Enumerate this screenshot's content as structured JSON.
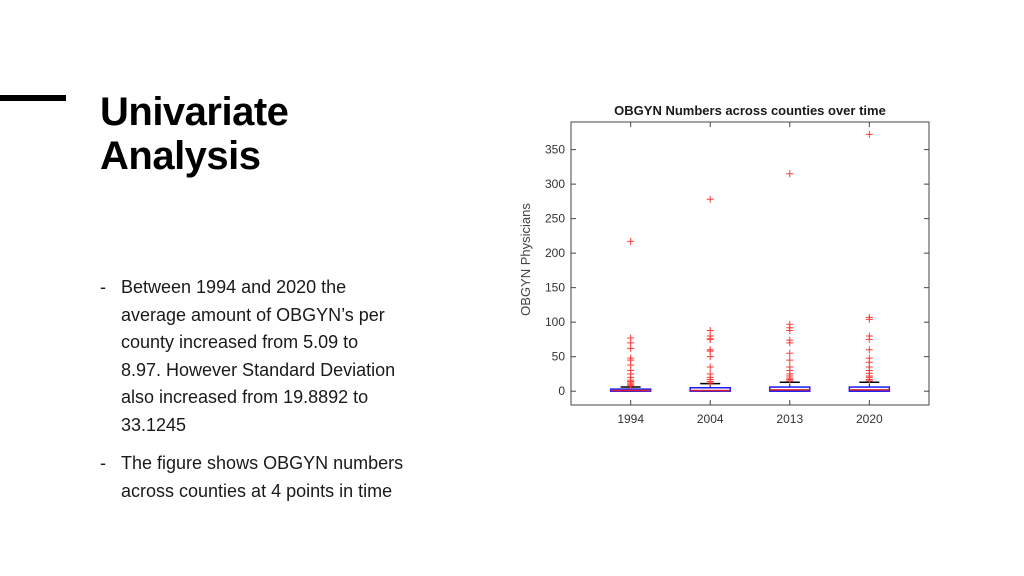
{
  "slide": {
    "title_lines": [
      "Univariate",
      "Analysis"
    ],
    "bullets": [
      {
        "dash": "-",
        "lines": [
          "Between 1994 and 2020 the",
          "average amount of OBGYN’s per",
          "county increased from 5.09 to",
          "8.97. However Standard Deviation",
          "also increased from 19.8892 to",
          "33.1245"
        ]
      },
      {
        "dash": "-",
        "lines": [
          "The figure shows OBGYN numbers",
          "across counties at 4 points in time"
        ]
      }
    ]
  },
  "chart_data": {
    "type": "boxplot",
    "title": "OBGYN Numbers across counties over time",
    "xlabel": "",
    "ylabel": "OBGYN Physicians",
    "categories": [
      "1994",
      "2004",
      "2013",
      "2020"
    ],
    "ylim": [
      -20,
      390
    ],
    "yticks": [
      0,
      50,
      100,
      150,
      200,
      250,
      300,
      350
    ],
    "ytick_labels": [
      "0",
      "50",
      "100",
      "150",
      "200",
      "250",
      "300",
      "350"
    ],
    "box_color": "#1a1aff",
    "median_color": "#e02020",
    "whisker_color": "#000000",
    "outlier_color": "#ff3b3b",
    "boxes": [
      {
        "category": "1994",
        "q1": 0,
        "median": 1,
        "q3": 3,
        "whisker_low": 0,
        "whisker_high": 6,
        "outliers": [
          217,
          77,
          70,
          62,
          48,
          45,
          38,
          30,
          25,
          20,
          16,
          14,
          12,
          10,
          8
        ]
      },
      {
        "category": "2004",
        "q1": 0,
        "median": 1,
        "q3": 5,
        "whisker_low": 0,
        "whisker_high": 11,
        "outliers": [
          278,
          88,
          80,
          76,
          75,
          60,
          58,
          50,
          35,
          25,
          20,
          17,
          14,
          12
        ]
      },
      {
        "category": "2013",
        "q1": 0,
        "median": 2,
        "q3": 6,
        "whisker_low": 0,
        "whisker_high": 13,
        "outliers": [
          315,
          97,
          92,
          88,
          74,
          70,
          55,
          45,
          35,
          30,
          25,
          22,
          19,
          17,
          15
        ]
      },
      {
        "category": "2020",
        "q1": 0,
        "median": 2,
        "q3": 6,
        "whisker_low": 0,
        "whisker_high": 13,
        "outliers": [
          372,
          107,
          104,
          80,
          75,
          60,
          48,
          42,
          35,
          30,
          26,
          22,
          20,
          17,
          15
        ]
      }
    ]
  }
}
